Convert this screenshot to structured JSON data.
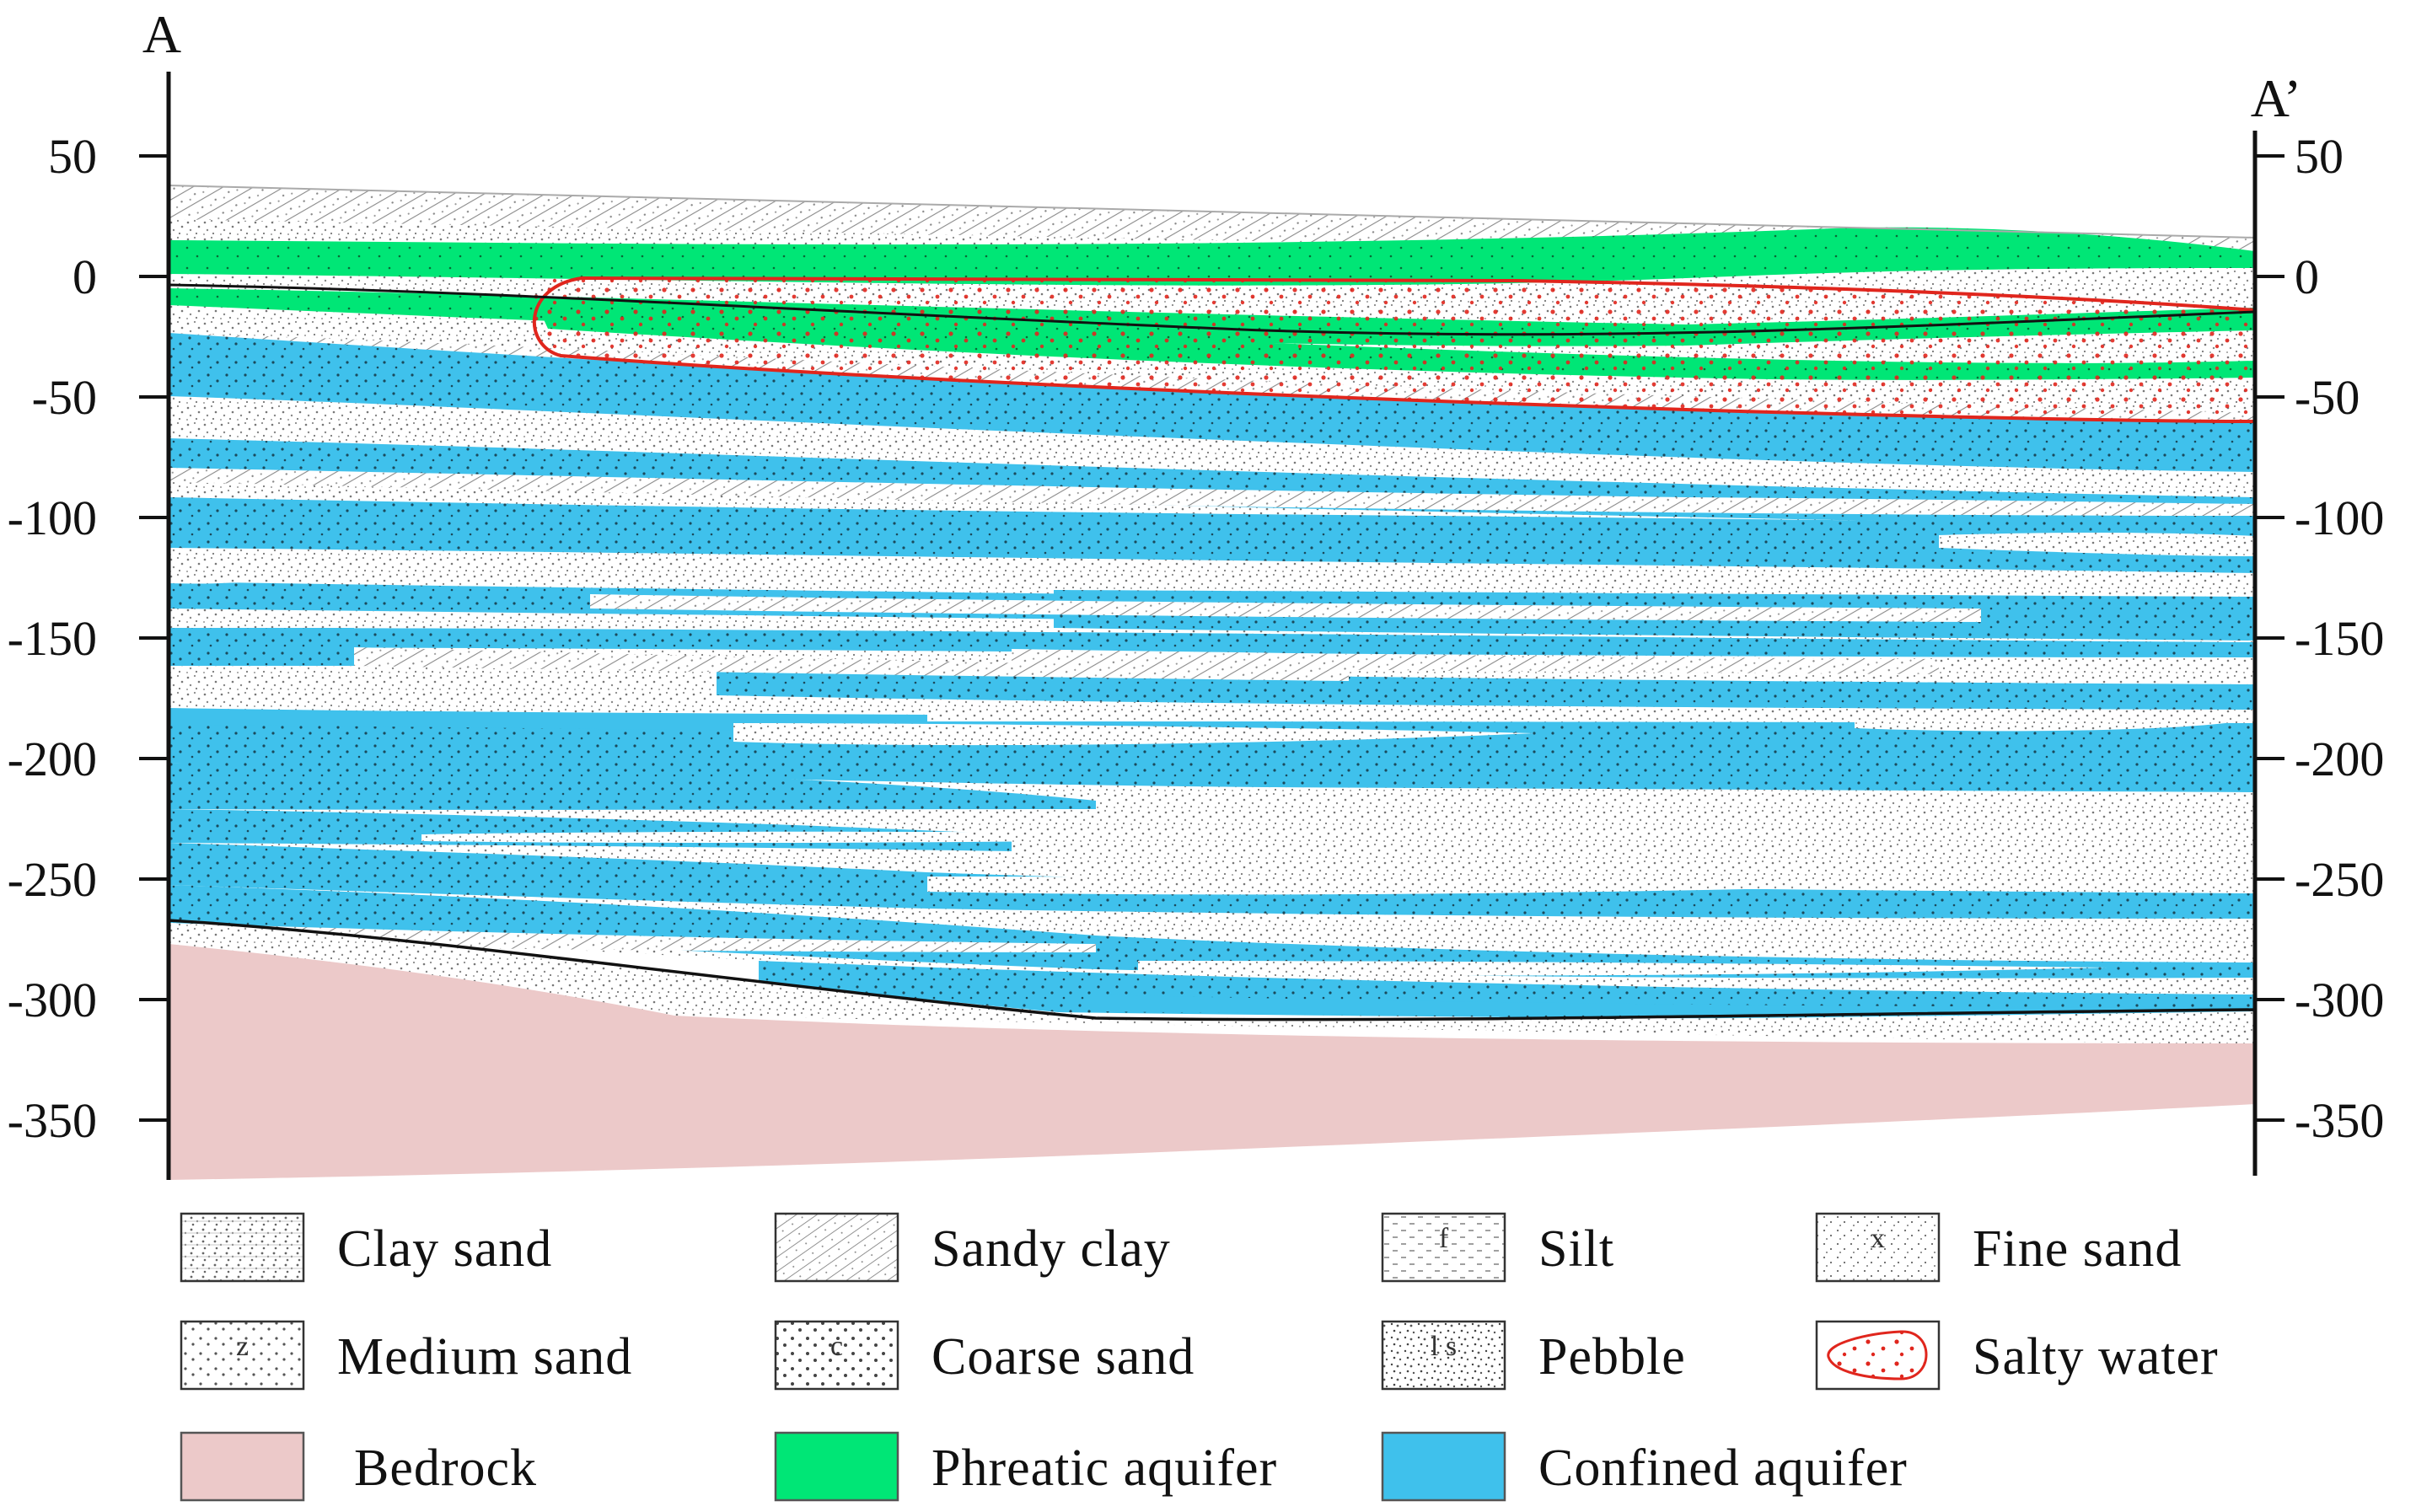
{
  "section": {
    "start_label": "A",
    "end_label": "A’"
  },
  "axis": {
    "ticks": [
      "50",
      "0",
      "-50",
      "-100",
      "-150",
      "-200",
      "-250",
      "-300",
      "-350"
    ]
  },
  "legend": [
    {
      "key": "clay-sand",
      "label": "Clay sand",
      "pattern": "clay-sand",
      "swatch_text": ""
    },
    {
      "key": "sandy-clay",
      "label": "Sandy clay",
      "pattern": "sandy-clay",
      "swatch_text": ""
    },
    {
      "key": "silt",
      "label": "Silt",
      "pattern": "silt",
      "swatch_text": "f"
    },
    {
      "key": "fine-sand",
      "label": "Fine sand",
      "pattern": "fine-sand",
      "swatch_text": "x"
    },
    {
      "key": "medium-sand",
      "label": "Medium sand",
      "pattern": "medium-sand",
      "swatch_text": "z"
    },
    {
      "key": "coarse-sand",
      "label": "Coarse sand",
      "pattern": "coarse-sand",
      "swatch_text": "c"
    },
    {
      "key": "pebble",
      "label": "Pebble",
      "pattern": "pebble",
      "swatch_text": "l s"
    },
    {
      "key": "salty-water",
      "label": "Salty water",
      "pattern": "salty",
      "swatch_text": ""
    },
    {
      "key": "bedrock",
      "label": "Bedrock",
      "pattern": "bedrock",
      "swatch_text": ""
    },
    {
      "key": "phreatic-aquifer",
      "label": "Phreatic aquifer",
      "pattern": "phreatic",
      "swatch_text": ""
    },
    {
      "key": "confined-aquifer",
      "label": "Confined aquifer",
      "pattern": "confined",
      "swatch_text": ""
    }
  ],
  "colors": {
    "phreatic": "#00e676",
    "confined": "#3fc1ec",
    "bedrock": "#ecc9c9",
    "salty_outline": "#e0261d",
    "boundary": "#111111"
  }
}
